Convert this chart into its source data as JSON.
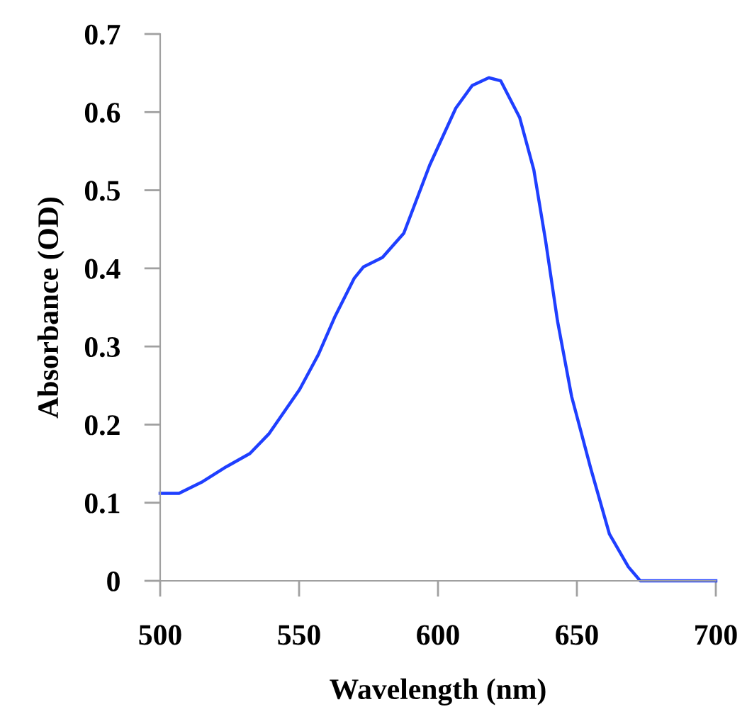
{
  "chart_data": {
    "type": "line",
    "xlabel": "Wavelength (nm)",
    "ylabel": "Absorbance (OD)",
    "x": [
      500,
      506.8,
      515.3,
      523.8,
      532.3,
      539.1,
      550.2,
      557,
      563,
      569.8,
      573.2,
      580,
      587.7,
      597,
      606.4,
      612.3,
      618.3,
      622.6,
      629.4,
      634.5,
      638.7,
      643,
      648.1,
      654.9,
      661.7,
      668.5,
      672.8,
      700
    ],
    "series": [
      {
        "color": "#1f3fff",
        "values": [
          0.112,
          0.112,
          0.127,
          0.146,
          0.163,
          0.188,
          0.245,
          0.29,
          0.339,
          0.387,
          0.402,
          0.414,
          0.445,
          0.532,
          0.605,
          0.634,
          0.644,
          0.64,
          0.593,
          0.526,
          0.436,
          0.333,
          0.236,
          0.145,
          0.06,
          0.018,
          0,
          0
        ]
      }
    ],
    "xlim": [
      500,
      700
    ],
    "xticks": [
      500,
      550,
      600,
      650,
      700
    ],
    "ylim": [
      0,
      0.7
    ],
    "yticks": [
      0,
      0.1,
      0.2,
      0.3,
      0.4,
      0.5,
      0.6,
      0.7
    ],
    "grid": false,
    "legend": false,
    "marker": "none",
    "line_style": "solid"
  }
}
